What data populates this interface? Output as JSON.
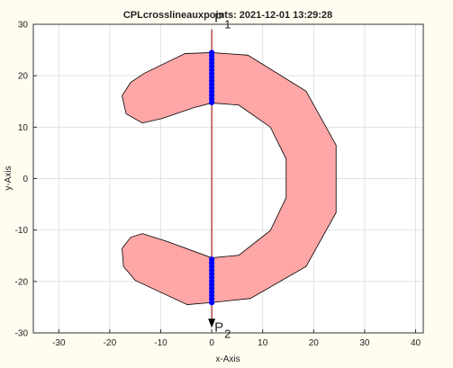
{
  "chart_data": {
    "type": "patch",
    "title": "CPLcrosslineauxpoints: 2021-12-01 13:29:28",
    "xlabel": "x-Axis",
    "ylabel": "y-Axis",
    "xlim": [
      -35,
      41.5
    ],
    "ylim": [
      -30,
      30
    ],
    "xticks": [
      -30,
      -20,
      -10,
      0,
      10,
      20,
      30,
      40
    ],
    "yticks": [
      -30,
      -20,
      -10,
      0,
      10,
      20,
      30
    ],
    "grid": true,
    "polygon": {
      "color": "#ffa6a6",
      "x": [
        -5.3,
        0,
        7.1,
        18.5,
        24.4,
        24.4,
        18.5,
        7.6,
        0,
        -4.8,
        -15.0,
        -17.3,
        -17.6,
        -15.9,
        -13.6,
        -8.8,
        0,
        5.3,
        11.5,
        14.6,
        14.6,
        11.5,
        5.3,
        0,
        -3.5,
        -9.7,
        -13.6,
        -16.8,
        -17.6,
        -15.9,
        -13.2
      ],
      "y": [
        24.3,
        24.5,
        24.0,
        17.0,
        6.5,
        -6.6,
        -17.1,
        -23.3,
        -24.1,
        -24.5,
        -19.8,
        -17.1,
        -13.6,
        -11.4,
        -10.7,
        -12.2,
        -15.4,
        -14.9,
        -10.1,
        -3.7,
        3.8,
        10.0,
        14.3,
        14.7,
        13.8,
        11.7,
        10.8,
        12.6,
        16.1,
        18.7,
        20.5
      ]
    },
    "points": {
      "color": "#0000ff",
      "x": [
        0,
        0,
        0,
        0,
        0,
        0,
        0,
        0,
        0,
        0,
        0,
        0,
        0,
        0,
        0,
        0,
        0,
        0,
        0,
        0,
        0,
        0,
        0,
        0,
        0,
        0,
        0,
        0
      ],
      "y": [
        14.8,
        15.5,
        16.2,
        16.9,
        17.6,
        18.3,
        19.0,
        19.7,
        20.4,
        21.1,
        21.8,
        22.5,
        23.2,
        23.9,
        24.5,
        -24.1,
        -23.4,
        -22.7,
        -22.0,
        -21.3,
        -20.6,
        -19.9,
        -19.2,
        -18.5,
        -17.8,
        -17.1,
        -16.4,
        -15.7
      ]
    },
    "line": {
      "color": "#a0221c",
      "x": [
        0,
        0
      ],
      "y": [
        29,
        -29
      ]
    },
    "annotations": [
      {
        "text": "P",
        "sub": "1"
      },
      {
        "text": "P",
        "sub": "2"
      }
    ]
  }
}
